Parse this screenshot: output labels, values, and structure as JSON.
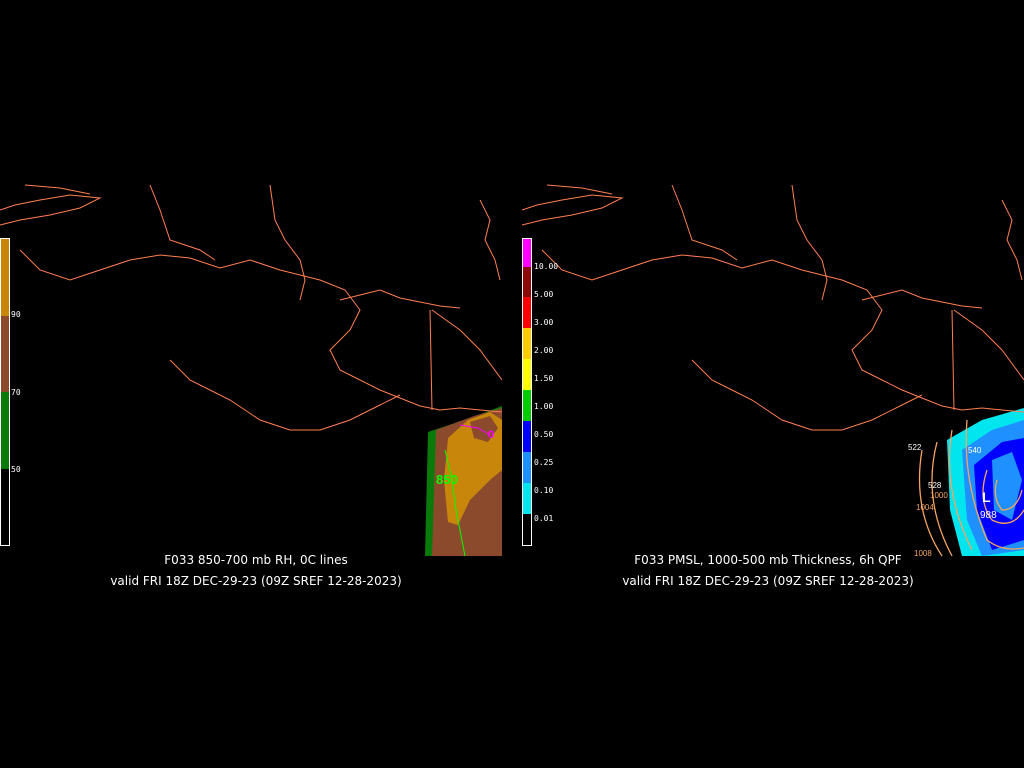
{
  "left": {
    "title": "F033 850-700 mb RH, 0C lines",
    "valid": "valid FRI 18Z DEC-29-23 (09Z SREF 12-28-2023)",
    "colorbar": {
      "labels": [
        "90",
        "70",
        "50"
      ],
      "colors": [
        "#c8860a",
        "#8b4a2b",
        "#0a7a0a",
        "#000000"
      ]
    },
    "map_labels": {
      "freezing_line": "850",
      "zero": "0"
    }
  },
  "right": {
    "title": "F033 PMSL, 1000-500 mb Thickness, 6h QPF",
    "valid": "valid FRI 18Z DEC-29-23 (09Z SREF 12-28-2023)",
    "colorbar": {
      "labels": [
        "10.00",
        "5.00",
        "3.00",
        "2.00",
        "1.50",
        "1.00",
        "0.50",
        "0.25",
        "0.10",
        "0.01"
      ],
      "colors": [
        "#ff00ff",
        "#8b0a0a",
        "#ff0000",
        "#ffcc00",
        "#ffff00",
        "#00cc00",
        "#0000ff",
        "#1e90ff",
        "#00e5ee",
        "#000000"
      ]
    },
    "map_labels": {
      "t522": "522",
      "t528": "528",
      "p1000": "1000",
      "p1004": "1004",
      "p1008": "1008",
      "t540": "540",
      "p988": "988",
      "low": "L"
    }
  },
  "colors": {
    "coast": "#ff7f50",
    "background": "#000000",
    "text": "#ffffff"
  }
}
